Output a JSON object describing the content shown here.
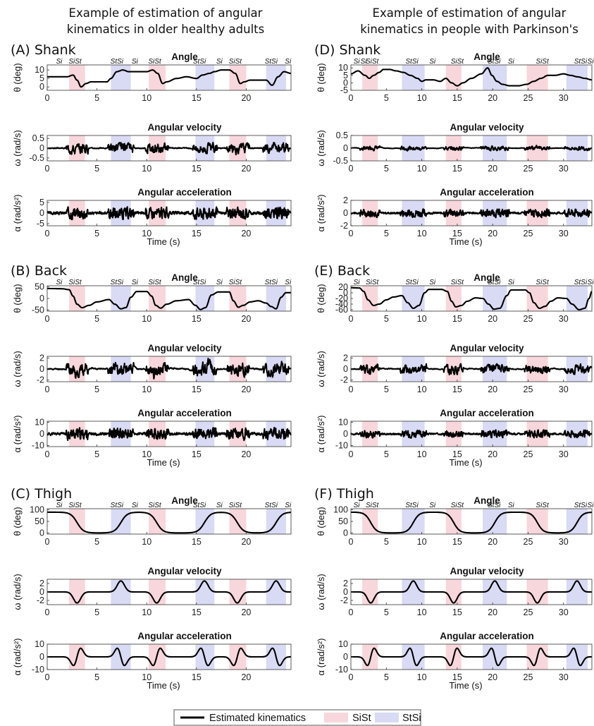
{
  "figure": {
    "column_titles": [
      [
        "Example of estimation of angular",
        "kinematics in older healthy adults"
      ],
      [
        "Example of estimation of angular",
        "kinematics in people with Parkinson's"
      ]
    ],
    "legend": {
      "line": "Estimated kinematics",
      "sist": "SiSt",
      "stsi": "StSi",
      "colors": {
        "line": "#000000",
        "sist": "#f8d7dc",
        "stsi": "#d9daf4"
      }
    }
  },
  "chart_data": [
    {
      "type": "line",
      "panel": "(A) Shank",
      "row_titles": [
        "Angle",
        "Angular velocity",
        "Angular acceleration"
      ],
      "ylabels": [
        "θ (deg)",
        "ω (rad/s)",
        "α (rad/s²)"
      ],
      "xlabel": "Time (s)",
      "xlim": [
        0,
        24.5
      ],
      "xticks": [
        0,
        5,
        10,
        15,
        20
      ],
      "ylims": [
        [
          -2,
          13
        ],
        [
          -0.65,
          0.65
        ],
        [
          -6,
          6
        ]
      ],
      "yticks": [
        [
          0,
          5,
          10
        ],
        [
          -0.5,
          0,
          0.5
        ],
        [
          -5,
          0,
          5
        ]
      ],
      "sist": [
        [
          2.2,
          3.8
        ],
        [
          10.2,
          11.9
        ],
        [
          18.3,
          20.0
        ]
      ],
      "stsi": [
        [
          6.4,
          8.4
        ],
        [
          14.9,
          16.8
        ],
        [
          22.0,
          24.0
        ]
      ],
      "phase_labels": [
        [
          "Si",
          1.2
        ],
        [
          "SiSt",
          2.8
        ],
        [
          "StSi",
          7.0
        ],
        [
          "Si",
          8.8
        ],
        [
          "SiSt",
          10.8
        ],
        [
          "StSi",
          15.3
        ],
        [
          "Si",
          17.3
        ],
        [
          "SiSt",
          18.9
        ],
        [
          "StSi",
          22.5
        ],
        [
          "Si",
          24.2
        ]
      ],
      "angle": {
        "x": [
          0,
          2,
          2.6,
          3.0,
          3.4,
          3.9,
          4.4,
          5,
          6,
          6.4,
          7.0,
          7.6,
          8.2,
          9,
          10,
          10.6,
          11.1,
          11.6,
          12,
          13,
          14,
          15,
          15.6,
          16.3,
          16.8,
          17.5,
          18.3,
          18.9,
          19.4,
          19.8,
          20.4,
          21,
          22,
          22.6,
          23.2,
          23.8,
          24.5
        ],
        "y": [
          6,
          6,
          7,
          4,
          0,
          2,
          3,
          3,
          3,
          5,
          9,
          10,
          9,
          9,
          9,
          10,
          8,
          2,
          3,
          5,
          6,
          5,
          7,
          8,
          9,
          10,
          10,
          8,
          2,
          3,
          4,
          4,
          4,
          1,
          6,
          9,
          8
        ]
      },
      "gen": {
        "vel_amp": 0.42,
        "acc_amp": 4.5,
        "seed": 3
      }
    },
    {
      "type": "line",
      "panel": "(D) Shank",
      "row_titles": [
        "Angle",
        "Angular velocity",
        "Angular acceleration"
      ],
      "ylabels": [
        "θ (deg)",
        "ω (rad/s)",
        "α (rad/s²)"
      ],
      "xlabel": "Time (s)",
      "xlim": [
        0,
        34
      ],
      "xticks": [
        0,
        5,
        10,
        15,
        20,
        25,
        30
      ],
      "ylims": [
        [
          -5,
          12
        ],
        [
          -0.5,
          0.5
        ],
        [
          -2,
          2
        ]
      ],
      "yticks": [
        [
          -5,
          0,
          5,
          10
        ],
        [
          -0.5,
          0,
          0.5
        ],
        [
          -2,
          0,
          2
        ]
      ],
      "sist": [
        [
          1.6,
          3.8
        ],
        [
          13.4,
          15.6
        ],
        [
          24.8,
          27.8
        ]
      ],
      "stsi": [
        [
          7.2,
          10.4
        ],
        [
          18.6,
          22.0
        ],
        [
          30.4,
          33.4
        ]
      ],
      "phase_labels": [
        [
          "Si",
          0.8
        ],
        [
          "Si",
          1.8
        ],
        [
          "SiSt",
          3.0
        ],
        [
          "StSi",
          8.6
        ],
        [
          "Si",
          11.5
        ],
        [
          "SiSt",
          15.0
        ],
        [
          "StSi",
          20.2
        ],
        [
          "Si",
          22.6
        ],
        [
          "SiSt",
          27.0
        ],
        [
          "StSi",
          32.4
        ],
        [
          "Si",
          33.8
        ]
      ],
      "angle": {
        "x": [
          0,
          1,
          2,
          2.6,
          3.2,
          4,
          4.6,
          5.4,
          6.4,
          7.4,
          8.4,
          9.4,
          10.0,
          10.6,
          11.6,
          12.6,
          13.4,
          14.2,
          15.0,
          15.8,
          17,
          18.4,
          19.3,
          19.9,
          20.6,
          21.4,
          22.4,
          23.6,
          24.8,
          25.8,
          26.8,
          27.8,
          28.8,
          30,
          31,
          32,
          33,
          34
        ],
        "y": [
          6,
          8,
          5,
          3,
          5,
          7,
          9,
          9,
          8,
          7,
          5,
          3,
          1,
          2,
          2,
          1,
          3,
          0,
          -2,
          0,
          3,
          6,
          10,
          5,
          1,
          -1,
          -2,
          -2,
          -1,
          1,
          3,
          5,
          5,
          6,
          5,
          4,
          3,
          2
        ]
      },
      "gen": {
        "vel_amp": 0.13,
        "acc_amp": 1.0,
        "seed": 7
      }
    },
    {
      "type": "line",
      "panel": "(B) Back",
      "row_titles": [
        "Angle",
        "Angular velocity",
        "Angular acceleration"
      ],
      "ylabels": [
        "θ (deg)",
        "ω (rad/s)",
        "α (rad/s²)"
      ],
      "xlabel": "Time (s)",
      "xlim": [
        0,
        24.5
      ],
      "xticks": [
        0,
        5,
        10,
        15,
        20
      ],
      "ylims": [
        [
          -55,
          55
        ],
        [
          -2.3,
          2.3
        ],
        [
          -11,
          11
        ]
      ],
      "yticks": [
        [
          -50,
          0,
          50
        ],
        [
          -2,
          0,
          2
        ],
        [
          -10,
          0,
          10
        ]
      ],
      "sist": [
        [
          2.2,
          3.8
        ],
        [
          10.2,
          11.9
        ],
        [
          18.3,
          20.0
        ]
      ],
      "stsi": [
        [
          6.4,
          8.4
        ],
        [
          14.9,
          16.8
        ],
        [
          22.0,
          24.0
        ]
      ],
      "phase_labels": [
        [
          "Si",
          1.2
        ],
        [
          "SiSt",
          2.8
        ],
        [
          "StSi",
          7.0
        ],
        [
          "Si",
          8.8
        ],
        [
          "SiSt",
          10.8
        ],
        [
          "StSi",
          15.3
        ],
        [
          "Si",
          17.3
        ],
        [
          "SiSt",
          18.9
        ],
        [
          "StSi",
          22.5
        ],
        [
          "Si",
          24.2
        ]
      ],
      "angle": {
        "x": [
          0,
          1.5,
          2.2,
          2.6,
          3.0,
          3.5,
          4.2,
          5,
          6.2,
          6.8,
          7.4,
          7.9,
          8.4,
          9,
          10,
          10.5,
          10.9,
          11.4,
          12,
          13,
          14.2,
          14.9,
          15.4,
          15.9,
          16.5,
          17.2,
          18.3,
          18.7,
          19.2,
          19.7,
          20.4,
          21.2,
          22.0,
          22.5,
          23.0,
          23.5,
          24.0,
          24.5
        ],
        "y": [
          43,
          42,
          38,
          10,
          -25,
          -40,
          -30,
          -15,
          -5,
          -25,
          -45,
          -40,
          5,
          30,
          30,
          10,
          -30,
          -42,
          -25,
          -10,
          -5,
          -30,
          -48,
          -40,
          15,
          28,
          28,
          -10,
          -38,
          -30,
          -15,
          -10,
          -20,
          -35,
          -45,
          5,
          25,
          25
        ]
      },
      "gen": {
        "vel_amp": 1.9,
        "acc_amp": 8.0,
        "seed": 11
      }
    },
    {
      "type": "line",
      "panel": "(E) Back",
      "row_titles": [
        "Angle",
        "Angular velocity",
        "Angular acceleration"
      ],
      "ylabels": [
        "θ (deg)",
        "ω (rad/s)",
        "α (rad/s²)"
      ],
      "xlabel": "Time (s)",
      "xlim": [
        0,
        34
      ],
      "xticks": [
        0,
        5,
        10,
        15,
        20,
        25,
        30
      ],
      "ylims": [
        [
          -65,
          25
        ],
        [
          -2.3,
          2.3
        ],
        [
          -11,
          11
        ]
      ],
      "yticks": [
        [
          -60,
          -40,
          -20,
          0,
          20
        ],
        [
          -2,
          0,
          2
        ],
        [
          -10,
          0,
          10
        ]
      ],
      "sist": [
        [
          1.6,
          3.8
        ],
        [
          13.4,
          15.6
        ],
        [
          24.8,
          27.8
        ]
      ],
      "stsi": [
        [
          7.2,
          10.4
        ],
        [
          18.6,
          22.0
        ],
        [
          30.4,
          33.4
        ]
      ],
      "phase_labels": [
        [
          "Si",
          0.8
        ],
        [
          "SiSt",
          3.0
        ],
        [
          "StSi",
          8.6
        ],
        [
          "Si",
          11.5
        ],
        [
          "SiSt",
          15.0
        ],
        [
          "StSi",
          20.2
        ],
        [
          "Si",
          22.6
        ],
        [
          "SiSt",
          27.0
        ],
        [
          "StSi",
          32.4
        ],
        [
          "Si",
          33.8
        ]
      ],
      "angle": {
        "x": [
          0,
          1.2,
          1.8,
          2.4,
          3.2,
          4.0,
          5.0,
          6.0,
          7.2,
          8.0,
          8.8,
          9.6,
          10.4,
          11.0,
          12.8,
          13.6,
          14.2,
          14.8,
          15.6,
          16.4,
          17.6,
          18.6,
          19.4,
          20.2,
          21.0,
          22.0,
          22.6,
          24.6,
          25.2,
          25.8,
          26.6,
          27.4,
          28.2,
          29.2,
          30.4,
          31.2,
          32.2,
          33.0,
          33.6,
          34
        ],
        "y": [
          18,
          17,
          5,
          -25,
          -45,
          -40,
          -25,
          -15,
          -10,
          -35,
          -55,
          -45,
          0,
          12,
          12,
          5,
          -30,
          -50,
          -45,
          -30,
          -18,
          -20,
          -40,
          -58,
          -55,
          -10,
          10,
          10,
          0,
          -35,
          -55,
          -48,
          -30,
          -18,
          -20,
          -40,
          -60,
          -55,
          -20,
          5
        ]
      },
      "gen": {
        "vel_amp": 1.3,
        "acc_amp": 5.0,
        "seed": 17
      }
    },
    {
      "type": "line",
      "panel": "(C) Thigh",
      "row_titles": [
        "Angle",
        "Angular velocity",
        "Angular acceleration"
      ],
      "ylabels": [
        "θ (deg)",
        "ω (rad/s)",
        "α (rad/s²)"
      ],
      "xlabel": "Time (s)",
      "xlim": [
        0,
        24.5
      ],
      "xticks": [
        0,
        5,
        10,
        15,
        20
      ],
      "ylims": [
        [
          -5,
          105
        ],
        [
          -3,
          3
        ],
        [
          -10,
          10
        ]
      ],
      "yticks": [
        [
          0,
          50,
          100
        ],
        [
          -2,
          0,
          2
        ],
        [
          -10,
          0,
          10
        ]
      ],
      "sist": [
        [
          2.2,
          3.8
        ],
        [
          10.2,
          11.9
        ],
        [
          18.3,
          20.0
        ]
      ],
      "stsi": [
        [
          6.4,
          8.4
        ],
        [
          14.9,
          16.8
        ],
        [
          22.0,
          24.0
        ]
      ],
      "phase_labels": [
        [
          "Si",
          1.2
        ],
        [
          "SiSt",
          2.8
        ],
        [
          "StSi",
          7.0
        ],
        [
          "Si",
          8.8
        ],
        [
          "SiSt",
          10.8
        ],
        [
          "StSi",
          15.3
        ],
        [
          "Si",
          17.3
        ],
        [
          "SiSt",
          18.9
        ],
        [
          "StSi",
          22.5
        ],
        [
          "Si",
          24.2
        ]
      ],
      "transitions": {
        "up": [
          7.4,
          15.8,
          23.0
        ],
        "down": [
          3.0,
          11.0,
          19.1
        ],
        "start_high": true,
        "tau": 0.32
      },
      "gen": {
        "vel_peak": 2.6,
        "acc_peak": 6.8
      }
    },
    {
      "type": "line",
      "panel": "(F) Thigh",
      "row_titles": [
        "Angle",
        "Angular velocity",
        "Angular acceleration"
      ],
      "ylabels": [
        "θ (deg)",
        "ω (rad/s)",
        "α (rad/s²)"
      ],
      "xlabel": "Time (s)",
      "xlim": [
        0,
        34
      ],
      "xticks": [
        0,
        5,
        10,
        15,
        20,
        25,
        30
      ],
      "ylims": [
        [
          -5,
          105
        ],
        [
          -3,
          3
        ],
        [
          -10,
          10
        ]
      ],
      "yticks": [
        [
          0,
          50,
          100
        ],
        [
          -2,
          0,
          2
        ],
        [
          -10,
          0,
          10
        ]
      ],
      "sist": [
        [
          1.6,
          3.8
        ],
        [
          13.4,
          15.6
        ],
        [
          24.8,
          27.8
        ]
      ],
      "stsi": [
        [
          7.2,
          10.4
        ],
        [
          18.6,
          22.0
        ],
        [
          30.4,
          33.4
        ]
      ],
      "phase_labels": [
        [
          "Si",
          0.8
        ],
        [
          "SiSt",
          3.0
        ],
        [
          "StSi",
          8.6
        ],
        [
          "Si",
          11.5
        ],
        [
          "SiSt",
          15.0
        ],
        [
          "StSi",
          20.2
        ],
        [
          "Si",
          22.6
        ],
        [
          "SiSt",
          27.0
        ],
        [
          "StSi",
          32.4
        ],
        [
          "Si",
          33.8
        ]
      ],
      "transitions": {
        "up": [
          8.8,
          20.3,
          31.9
        ],
        "down": [
          2.8,
          14.5,
          26.3
        ],
        "start_high": true,
        "tau": 0.42
      },
      "gen": {
        "vel_peak": 2.6,
        "acc_peak": 6.8
      }
    }
  ]
}
